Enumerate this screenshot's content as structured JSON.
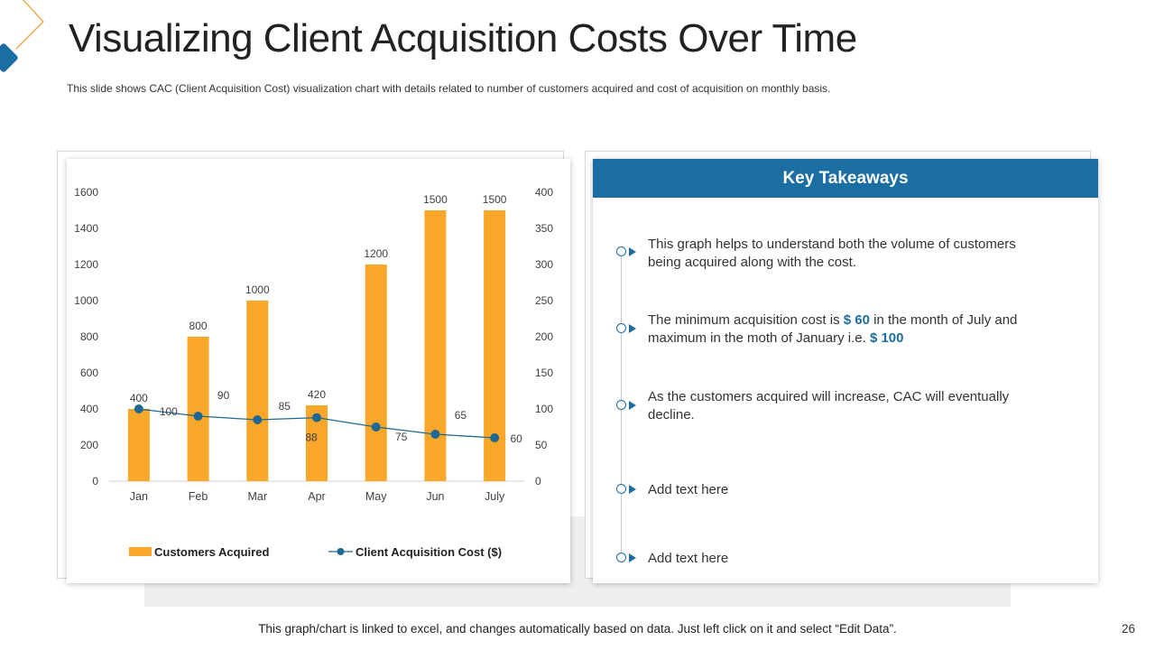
{
  "slide": {
    "title": "Visualizing Client Acquisition Costs Over Time",
    "subtitle": "This slide shows CAC (Client Acquisition Cost) visualization chart with details related to number of customers acquired and cost of acquisition on monthly basis.",
    "footer": "This graph/chart is linked to excel, and changes automatically based on data. Just left click on it and select “Edit Data”.",
    "page_number": "26"
  },
  "colors": {
    "bar": "#f9a72a",
    "line": "#1f6892",
    "header": "#1b6ea3",
    "accent": "#e8a440"
  },
  "chart_data": {
    "type": "bar",
    "categories": [
      "Jan",
      "Feb",
      "Mar",
      "Apr",
      "May",
      "Jun",
      "July"
    ],
    "series": [
      {
        "name": "Customers Acquired",
        "type": "bar",
        "axis": "left",
        "values": [
          400,
          800,
          1000,
          420,
          1200,
          1500,
          1500
        ]
      },
      {
        "name": "Client Acquisition Cost ($)",
        "type": "line",
        "axis": "right",
        "values": [
          100,
          90,
          85,
          88,
          75,
          65,
          60
        ]
      }
    ],
    "y_left": {
      "range": [
        0,
        1600
      ],
      "ticks": [
        "0",
        "200",
        "400",
        "600",
        "800",
        "1000",
        "1200",
        "1400",
        "1600"
      ]
    },
    "y_right": {
      "range": [
        0,
        400
      ],
      "ticks": [
        "0",
        "50",
        "100",
        "150",
        "200",
        "250",
        "300",
        "350",
        "400"
      ]
    },
    "title": "",
    "legend_position": "bottom",
    "grid": false
  },
  "takeaways": {
    "header": "Key Takeaways",
    "items": [
      {
        "text": "This graph helps to understand both the volume of customers being acquired along with the cost."
      },
      {
        "pre": "The minimum acquisition cost is ",
        "hl1": "$ 60",
        "mid": " in the month of July and maximum in the moth of January i.e. ",
        "hl2": "$ 100"
      },
      {
        "text": "As the customers acquired will increase, CAC will eventually decline."
      },
      {
        "text": "Add text here"
      },
      {
        "text": "Add text here"
      }
    ]
  }
}
